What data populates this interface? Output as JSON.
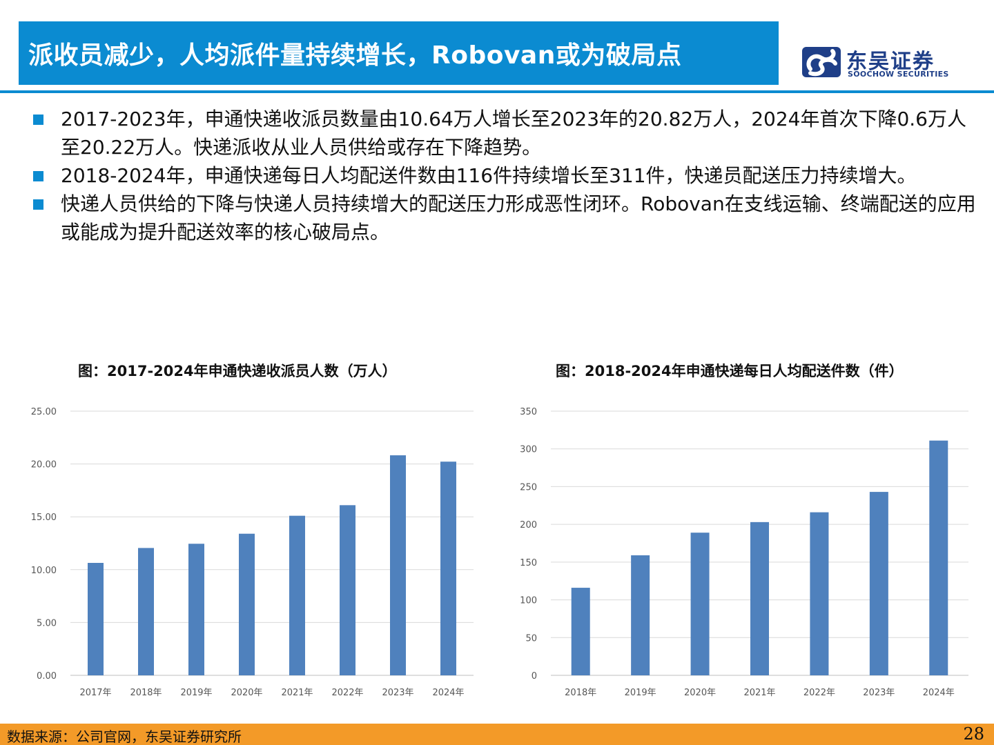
{
  "header": {
    "title": "派收员减少，人均派件量持续增长，Robovan或为破局点",
    "logo_cn": "东吴证券",
    "logo_en": "SOOCHOW SECURITIES"
  },
  "bullets": [
    "2017-2023年，申通快递收派员数量由10.64万人增长至2023年的20.82万人，2024年首次下降0.6万人至20.22万人。快递派收从业人员供给或存在下降趋势。",
    "2018-2024年，申通快递每日人均配送件数由116件持续增长至311件，快递员配送压力持续增大。",
    "快递人员供给的下降与快递人员持续增大的配送压力形成恶性闭环。Robovan在支线运输、终端配送的应用或能成为提升配送效率的核心破局点。"
  ],
  "chart_data": [
    {
      "type": "bar",
      "title": "图：2017-2024年申通快递收派员人数（万人）",
      "categories": [
        "2017年",
        "2018年",
        "2019年",
        "2020年",
        "2021年",
        "2022年",
        "2023年",
        "2024年"
      ],
      "values": [
        10.64,
        12.05,
        12.45,
        13.4,
        15.1,
        16.1,
        20.82,
        20.22
      ],
      "ylim": [
        0,
        25
      ],
      "yticks": [
        "0.00",
        "5.00",
        "10.00",
        "15.00",
        "20.00",
        "25.00"
      ],
      "xlabel": "",
      "ylabel": "",
      "grid": true,
      "color": "#4f81bd"
    },
    {
      "type": "bar",
      "title": "图：2018-2024年申通快递每日人均配送件数（件）",
      "categories": [
        "2018年",
        "2019年",
        "2020年",
        "2021年",
        "2022年",
        "2023年",
        "2024年"
      ],
      "values": [
        116,
        159,
        189,
        203,
        216,
        243,
        311
      ],
      "ylim": [
        0,
        350
      ],
      "yticks": [
        "0",
        "50",
        "100",
        "150",
        "200",
        "250",
        "300",
        "350"
      ],
      "xlabel": "",
      "ylabel": "",
      "grid": true,
      "color": "#4f81bd"
    }
  ],
  "footer": {
    "source": "数据来源：公司官网，东吴证券研究所",
    "page": "28"
  },
  "colors": {
    "accent": "#0b8bd1",
    "footer": "#f39a28",
    "brand": "#1f3f88",
    "bar": "#4f81bd"
  }
}
